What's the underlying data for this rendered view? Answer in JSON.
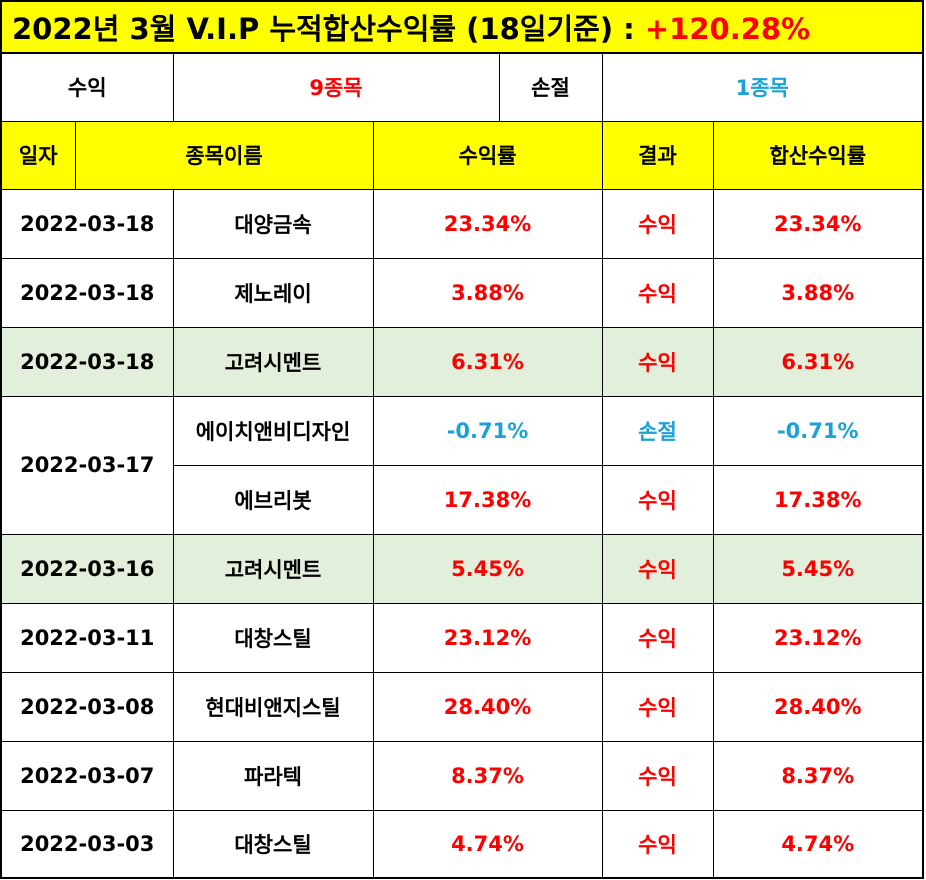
{
  "title": {
    "text": "2022년 3월 V.I.P 누적합산수익률 (18일기준) : ",
    "value": "+120.28%"
  },
  "summary": {
    "profit_label": "수익",
    "profit_count": "9종목",
    "loss_label": "손절",
    "loss_count": "1종목"
  },
  "headers": {
    "date": "일자",
    "name": "종목이름",
    "rate": "수익률",
    "result": "결과",
    "total": "합산수익률"
  },
  "colors": {
    "header_bg": "#ffff00",
    "highlight_bg": "#e2efda",
    "profit": "#ff0000",
    "loss": "#1ca1d6"
  },
  "rows": [
    {
      "date": "2022-03-18",
      "name": "대양금속",
      "rate": "23.34%",
      "result": "수익",
      "total": "23.34%"
    },
    {
      "date": "2022-03-18",
      "name": "제노레이",
      "rate": "3.88%",
      "result": "수익",
      "total": "3.88%"
    },
    {
      "date": "2022-03-18",
      "name": "고려시멘트",
      "rate": "6.31%",
      "result": "수익",
      "total": "6.31%"
    },
    {
      "date": "2022-03-17",
      "name": "에이치앤비디자인",
      "rate": "-0.71%",
      "result": "손절",
      "total": "-0.71%"
    },
    {
      "date": "",
      "name": "에브리봇",
      "rate": "17.38%",
      "result": "수익",
      "total": "17.38%"
    },
    {
      "date": "2022-03-16",
      "name": "고려시멘트",
      "rate": "5.45%",
      "result": "수익",
      "total": "5.45%"
    },
    {
      "date": "2022-03-11",
      "name": "대창스틸",
      "rate": "23.12%",
      "result": "수익",
      "total": "23.12%"
    },
    {
      "date": "2022-03-08",
      "name": "현대비앤지스틸",
      "rate": "28.40%",
      "result": "수익",
      "total": "28.40%"
    },
    {
      "date": "2022-03-07",
      "name": "파라텍",
      "rate": "8.37%",
      "result": "수익",
      "total": "8.37%"
    },
    {
      "date": "2022-03-03",
      "name": "대창스틸",
      "rate": "4.74%",
      "result": "수익",
      "total": "4.74%"
    }
  ]
}
